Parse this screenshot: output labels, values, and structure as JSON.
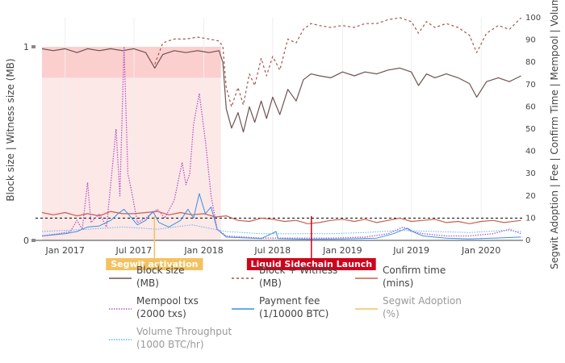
{
  "chart_data": {
    "type": "line",
    "title": "",
    "x_axis": {
      "type": "date",
      "range": [
        "2016-10-15",
        "2020-04-20"
      ],
      "tick_labels": [
        "Jan 2017",
        "Jul 2017",
        "Jan 2018",
        "Jul 2018",
        "Jan 2019",
        "Jul 2019",
        "Jan 2020"
      ],
      "tick_dates": [
        "2017-01-01",
        "2017-07-01",
        "2018-01-01",
        "2018-07-01",
        "2019-01-01",
        "2019-07-01",
        "2020-01-01"
      ]
    },
    "y_axis_left": {
      "label": "Block size | Witness size (MB)",
      "range": [
        0,
        1.15
      ],
      "ticks": [
        0,
        1
      ],
      "tick_labels": [
        "0",
        "1"
      ]
    },
    "y_axis_right": {
      "label": "Segwit Adoption | Fee | Confirm Time | Mempool | Volume",
      "range": [
        0,
        100
      ],
      "ticks": [
        0,
        10,
        20,
        30,
        40,
        50,
        60,
        70,
        80,
        90,
        100
      ],
      "tick_labels": [
        "0",
        "10",
        "20",
        "30",
        "40",
        "50",
        "60",
        "70",
        "80",
        "90",
        "100"
      ]
    },
    "reference_line": {
      "axis": "right",
      "value": 10,
      "style": "dashed",
      "color": "#000000"
    },
    "shaded_regions": [
      {
        "x_start": "2016-11-01",
        "x_end": "2018-02-15",
        "y_start": 0,
        "y_end": 1.0,
        "axis": "left",
        "color": "#fde8e8"
      },
      {
        "x_start": "2016-11-01",
        "x_end": "2018-02-15",
        "y_start": 0.84,
        "y_end": 1.0,
        "axis": "left",
        "color": "#fccfcf"
      }
    ],
    "annotations": [
      {
        "text": "Segwit activation",
        "x": "2017-08-24",
        "bg": "#f5c160",
        "fg": "#ffffff"
      },
      {
        "text": "Liquid Sidechain Launch",
        "x": "2018-10-11",
        "bg": "#d0021b",
        "fg": "#ffffff"
      }
    ],
    "legend": {
      "placement": "bottom",
      "items": [
        {
          "line1": "Block size",
          "line2": "(MB)",
          "series": "block_size"
        },
        {
          "line1": "Block + Witness",
          "line2": "(MB)",
          "series": "block_witness"
        },
        {
          "line1": "Confirm time",
          "line2": "(mins)",
          "series": "confirm_time"
        },
        {
          "line1": "Mempool txs",
          "line2": "(2000 txs)",
          "series": "mempool"
        },
        {
          "line1": "Payment fee",
          "line2": "(1/10000 BTC)",
          "series": "payment_fee"
        },
        {
          "line1": "Segwit Adoption",
          "line2": "(%)",
          "series": "segwit_adoption"
        },
        {
          "line1": "Volume Throughput",
          "line2": " (1000 BTC/hr)",
          "series": "volume"
        }
      ]
    },
    "series": [
      {
        "key": "block_size",
        "axis": "left",
        "color": "#6d5350",
        "dash": "solid",
        "width": 1.2,
        "points": [
          [
            "2016-11-01",
            0.99
          ],
          [
            "2016-12-01",
            0.98
          ],
          [
            "2017-01-01",
            0.99
          ],
          [
            "2017-02-01",
            0.97
          ],
          [
            "2017-03-01",
            0.99
          ],
          [
            "2017-04-01",
            0.98
          ],
          [
            "2017-05-01",
            0.99
          ],
          [
            "2017-06-01",
            0.98
          ],
          [
            "2017-07-01",
            0.99
          ],
          [
            "2017-08-01",
            0.97
          ],
          [
            "2017-08-25",
            0.89
          ],
          [
            "2017-09-15",
            0.96
          ],
          [
            "2017-10-15",
            0.98
          ],
          [
            "2017-11-15",
            0.97
          ],
          [
            "2017-12-15",
            0.98
          ],
          [
            "2018-01-15",
            0.97
          ],
          [
            "2018-02-10",
            0.98
          ],
          [
            "2018-02-20",
            0.92
          ],
          [
            "2018-03-01",
            0.68
          ],
          [
            "2018-03-15",
            0.58
          ],
          [
            "2018-04-01",
            0.66
          ],
          [
            "2018-04-15",
            0.56
          ],
          [
            "2018-05-01",
            0.69
          ],
          [
            "2018-05-15",
            0.61
          ],
          [
            "2018-06-01",
            0.72
          ],
          [
            "2018-06-15",
            0.63
          ],
          [
            "2018-07-01",
            0.74
          ],
          [
            "2018-07-20",
            0.65
          ],
          [
            "2018-08-10",
            0.78
          ],
          [
            "2018-09-01",
            0.72
          ],
          [
            "2018-09-20",
            0.83
          ],
          [
            "2018-10-10",
            0.86
          ],
          [
            "2018-11-01",
            0.85
          ],
          [
            "2018-12-01",
            0.84
          ],
          [
            "2019-01-01",
            0.87
          ],
          [
            "2019-02-01",
            0.85
          ],
          [
            "2019-03-01",
            0.87
          ],
          [
            "2019-04-01",
            0.86
          ],
          [
            "2019-05-01",
            0.88
          ],
          [
            "2019-06-01",
            0.89
          ],
          [
            "2019-07-01",
            0.87
          ],
          [
            "2019-07-20",
            0.8
          ],
          [
            "2019-08-10",
            0.86
          ],
          [
            "2019-09-01",
            0.84
          ],
          [
            "2019-10-01",
            0.86
          ],
          [
            "2019-11-01",
            0.84
          ],
          [
            "2019-12-01",
            0.81
          ],
          [
            "2019-12-20",
            0.74
          ],
          [
            "2020-01-15",
            0.82
          ],
          [
            "2020-02-15",
            0.84
          ],
          [
            "2020-03-15",
            0.82
          ],
          [
            "2020-04-15",
            0.85
          ]
        ]
      },
      {
        "key": "block_witness",
        "axis": "left",
        "color": "#a0574c",
        "dash": "3,3",
        "width": 1.2,
        "points": [
          [
            "2017-08-25",
            0.91
          ],
          [
            "2017-09-15",
            1.02
          ],
          [
            "2017-10-15",
            1.04
          ],
          [
            "2017-11-15",
            1.04
          ],
          [
            "2017-12-15",
            1.05
          ],
          [
            "2018-01-15",
            1.04
          ],
          [
            "2018-02-10",
            1.03
          ],
          [
            "2018-02-20",
            1.0
          ],
          [
            "2018-03-01",
            0.79
          ],
          [
            "2018-03-15",
            0.69
          ],
          [
            "2018-04-01",
            0.79
          ],
          [
            "2018-04-15",
            0.7
          ],
          [
            "2018-05-01",
            0.86
          ],
          [
            "2018-05-15",
            0.8
          ],
          [
            "2018-06-01",
            0.94
          ],
          [
            "2018-06-15",
            0.85
          ],
          [
            "2018-07-01",
            0.95
          ],
          [
            "2018-07-20",
            0.88
          ],
          [
            "2018-08-10",
            1.04
          ],
          [
            "2018-09-01",
            1.02
          ],
          [
            "2018-09-20",
            1.09
          ],
          [
            "2018-10-10",
            1.12
          ],
          [
            "2018-11-01",
            1.11
          ],
          [
            "2018-12-01",
            1.1
          ],
          [
            "2019-01-01",
            1.11
          ],
          [
            "2019-02-01",
            1.1
          ],
          [
            "2019-03-01",
            1.12
          ],
          [
            "2019-04-01",
            1.12
          ],
          [
            "2019-05-01",
            1.14
          ],
          [
            "2019-06-01",
            1.15
          ],
          [
            "2019-07-01",
            1.13
          ],
          [
            "2019-07-20",
            1.07
          ],
          [
            "2019-08-10",
            1.13
          ],
          [
            "2019-09-01",
            1.1
          ],
          [
            "2019-10-01",
            1.12
          ],
          [
            "2019-11-01",
            1.1
          ],
          [
            "2019-12-01",
            1.06
          ],
          [
            "2019-12-20",
            0.97
          ],
          [
            "2020-01-15",
            1.07
          ],
          [
            "2020-02-15",
            1.11
          ],
          [
            "2020-03-15",
            1.09
          ],
          [
            "2020-04-15",
            1.15
          ]
        ]
      },
      {
        "key": "confirm_time",
        "axis": "right",
        "color": "#c7604e",
        "dash": "solid",
        "width": 1.2,
        "points": [
          [
            "2016-11-01",
            12.5
          ],
          [
            "2016-12-01",
            11.5
          ],
          [
            "2017-01-01",
            12.5
          ],
          [
            "2017-02-01",
            11.0
          ],
          [
            "2017-03-01",
            12.0
          ],
          [
            "2017-04-01",
            11.0
          ],
          [
            "2017-05-01",
            13.0
          ],
          [
            "2017-06-01",
            12.0
          ],
          [
            "2017-07-01",
            12.0
          ],
          [
            "2017-08-01",
            12.5
          ],
          [
            "2017-09-01",
            13.0
          ],
          [
            "2017-10-01",
            11.5
          ],
          [
            "2017-11-01",
            12.5
          ],
          [
            "2017-12-01",
            11.5
          ],
          [
            "2018-01-01",
            12.0
          ],
          [
            "2018-02-01",
            10.5
          ],
          [
            "2018-03-01",
            11.0
          ],
          [
            "2018-04-01",
            9.0
          ],
          [
            "2018-05-01",
            8.5
          ],
          [
            "2018-06-01",
            10.0
          ],
          [
            "2018-07-01",
            9.5
          ],
          [
            "2018-08-01",
            8.5
          ],
          [
            "2018-09-01",
            9.0
          ],
          [
            "2018-10-01",
            7.5
          ],
          [
            "2018-11-01",
            8.0
          ],
          [
            "2018-12-01",
            9.0
          ],
          [
            "2019-01-01",
            9.5
          ],
          [
            "2019-02-01",
            8.5
          ],
          [
            "2019-03-01",
            9.5
          ],
          [
            "2019-04-01",
            8.0
          ],
          [
            "2019-05-01",
            9.0
          ],
          [
            "2019-06-01",
            10.0
          ],
          [
            "2019-07-01",
            8.5
          ],
          [
            "2019-08-01",
            9.0
          ],
          [
            "2019-09-01",
            9.5
          ],
          [
            "2019-10-01",
            8.0
          ],
          [
            "2019-11-01",
            8.5
          ],
          [
            "2019-12-01",
            7.5
          ],
          [
            "2020-01-01",
            8.5
          ],
          [
            "2020-02-01",
            9.0
          ],
          [
            "2020-03-01",
            8.0
          ],
          [
            "2020-04-15",
            9.0
          ]
        ]
      },
      {
        "key": "mempool",
        "axis": "right",
        "color": "#b15ac4",
        "dash": "1.5,1.5",
        "width": 1.3,
        "points": [
          [
            "2016-11-01",
            2.0
          ],
          [
            "2016-12-15",
            3.0
          ],
          [
            "2017-01-15",
            4.0
          ],
          [
            "2017-02-01",
            9.0
          ],
          [
            "2017-02-15",
            5.0
          ],
          [
            "2017-03-01",
            26.0
          ],
          [
            "2017-03-10",
            8.0
          ],
          [
            "2017-04-01",
            12.0
          ],
          [
            "2017-04-20",
            6.0
          ],
          [
            "2017-05-15",
            50.0
          ],
          [
            "2017-05-25",
            20.0
          ],
          [
            "2017-06-05",
            87.0
          ],
          [
            "2017-06-15",
            30.0
          ],
          [
            "2017-06-25",
            22.0
          ],
          [
            "2017-07-10",
            8.0
          ],
          [
            "2017-08-01",
            10.0
          ],
          [
            "2017-08-15",
            12.0
          ],
          [
            "2017-09-01",
            14.0
          ],
          [
            "2017-09-20",
            10.0
          ],
          [
            "2017-10-15",
            18.0
          ],
          [
            "2017-11-05",
            35.0
          ],
          [
            "2017-11-15",
            25.0
          ],
          [
            "2017-11-25",
            30.0
          ],
          [
            "2017-12-05",
            52.0
          ],
          [
            "2017-12-20",
            66.0
          ],
          [
            "2018-01-05",
            45.0
          ],
          [
            "2018-01-20",
            20.0
          ],
          [
            "2018-02-05",
            5.0
          ],
          [
            "2018-03-01",
            2.0
          ],
          [
            "2018-06-01",
            1.0
          ],
          [
            "2018-09-01",
            1.0
          ],
          [
            "2018-12-01",
            1.0
          ],
          [
            "2019-03-01",
            1.5
          ],
          [
            "2019-05-01",
            3.0
          ],
          [
            "2019-06-10",
            6.0
          ],
          [
            "2019-07-01",
            4.0
          ],
          [
            "2019-08-01",
            3.0
          ],
          [
            "2019-10-01",
            2.0
          ],
          [
            "2019-12-01",
            2.0
          ],
          [
            "2020-02-01",
            3.0
          ],
          [
            "2020-03-15",
            5.0
          ],
          [
            "2020-04-15",
            3.0
          ]
        ]
      },
      {
        "key": "payment_fee",
        "axis": "right",
        "color": "#3a8fe3",
        "dash": "solid",
        "width": 1.0,
        "points": [
          [
            "2016-11-01",
            2.0
          ],
          [
            "2016-12-01",
            2.5
          ],
          [
            "2017-01-01",
            3.0
          ],
          [
            "2017-02-01",
            4.0
          ],
          [
            "2017-03-01",
            6.0
          ],
          [
            "2017-04-01",
            6.5
          ],
          [
            "2017-05-01",
            9.0
          ],
          [
            "2017-05-20",
            12.0
          ],
          [
            "2017-06-05",
            14.0
          ],
          [
            "2017-06-20",
            11.0
          ],
          [
            "2017-07-10",
            7.0
          ],
          [
            "2017-08-01",
            9.0
          ],
          [
            "2017-08-20",
            13.0
          ],
          [
            "2017-09-05",
            8.0
          ],
          [
            "2017-10-01",
            6.0
          ],
          [
            "2017-11-01",
            9.0
          ],
          [
            "2017-11-20",
            14.0
          ],
          [
            "2017-12-05",
            10.0
          ],
          [
            "2017-12-20",
            21.0
          ],
          [
            "2018-01-05",
            12.0
          ],
          [
            "2018-01-20",
            15.0
          ],
          [
            "2018-02-05",
            5.0
          ],
          [
            "2018-03-01",
            1.5
          ],
          [
            "2018-06-01",
            0.8
          ],
          [
            "2018-07-10",
            4.0
          ],
          [
            "2018-07-15",
            0.8
          ],
          [
            "2018-10-01",
            0.5
          ],
          [
            "2019-01-01",
            0.6
          ],
          [
            "2019-04-01",
            1.0
          ],
          [
            "2019-05-15",
            3.0
          ],
          [
            "2019-06-20",
            5.5
          ],
          [
            "2019-07-10",
            3.5
          ],
          [
            "2019-08-01",
            2.0
          ],
          [
            "2019-10-01",
            1.0
          ],
          [
            "2019-12-01",
            0.7
          ],
          [
            "2020-02-01",
            1.0
          ],
          [
            "2020-04-15",
            1.5
          ]
        ]
      },
      {
        "key": "segwit_adoption",
        "axis": "right",
        "color": "#f5c160",
        "dash": "solid",
        "width": 1.2,
        "points": []
      },
      {
        "key": "volume",
        "axis": "right",
        "color": "#5fb4f2",
        "dash": "1.5,1.5",
        "width": 1.0,
        "points": [
          [
            "2016-11-01",
            4.0
          ],
          [
            "2017-03-01",
            5.0
          ],
          [
            "2017-06-01",
            6.0
          ],
          [
            "2017-09-01",
            5.0
          ],
          [
            "2017-12-01",
            7.0
          ],
          [
            "2018-03-01",
            4.0
          ],
          [
            "2018-06-01",
            3.0
          ],
          [
            "2018-09-01",
            3.0
          ],
          [
            "2018-12-01",
            3.0
          ],
          [
            "2019-03-01",
            3.5
          ],
          [
            "2019-06-01",
            4.5
          ],
          [
            "2019-09-01",
            4.0
          ],
          [
            "2019-12-01",
            3.5
          ],
          [
            "2020-03-01",
            4.5
          ],
          [
            "2020-04-15",
            4.0
          ]
        ]
      }
    ]
  }
}
